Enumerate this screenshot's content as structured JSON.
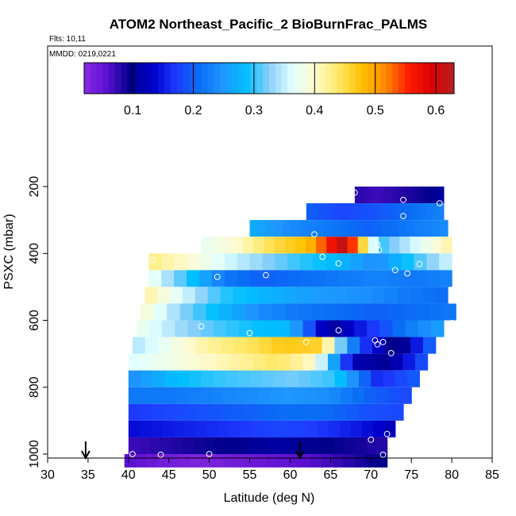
{
  "chart_data": {
    "type": "heatmap",
    "title": "ATOM2 Northeast_Pacific_2 BioBurnFrac_PALMS",
    "flights_label": "Flts: 10,11",
    "dates_label": "MMDD: 0219,0221",
    "xlabel": "Latitude (deg N)",
    "ylabel": "PSXC (mbar)",
    "xlim": [
      30,
      85
    ],
    "ylim": [
      1000,
      150
    ],
    "x_ticks": [
      "30",
      "35",
      "40",
      "45",
      "50",
      "55",
      "60",
      "65",
      "70",
      "75",
      "80",
      "85"
    ],
    "y_ticks": [
      "200",
      "400",
      "600",
      "800",
      "1000"
    ],
    "colorbar": {
      "range": [
        0.02,
        0.63
      ],
      "ticks": [
        "0.1",
        "0.2",
        "0.3",
        "0.4",
        "0.5",
        "0.6"
      ],
      "colors": [
        "#8a2be2",
        "#5a10d0",
        "#00008b",
        "#0000cd",
        "#1e3cff",
        "#0a6ef5",
        "#1e96ff",
        "#00bfff",
        "#87cefa",
        "#e0ffff",
        "#fffacd",
        "#ffe866",
        "#ffc000",
        "#ff8c00",
        "#ff2000",
        "#dd0000",
        "#b22222"
      ]
    },
    "arrows_at_latitude": [
      34.7,
      61.2
    ],
    "rows": [
      {
        "pressure": [
          200,
          250
        ],
        "lat": [
          68,
          79
        ],
        "values": [
          0.08,
          0.07,
          0.08,
          0.09,
          0.11
        ]
      },
      {
        "pressure": [
          250,
          300
        ],
        "lat": [
          62,
          79
        ],
        "values": [
          0.2,
          0.18,
          0.19,
          0.21,
          0.23
        ]
      },
      {
        "pressure": [
          300,
          350
        ],
        "lat": [
          55,
          79.5
        ],
        "values": [
          0.27,
          0.24,
          0.22,
          0.2,
          0.22,
          0.24
        ]
      },
      {
        "pressure": [
          350,
          400
        ],
        "lat": [
          49,
          80
        ],
        "values": [
          0.37,
          0.4,
          0.45,
          0.48,
          0.62,
          0.3,
          0.36,
          0.42
        ]
      },
      {
        "pressure": [
          400,
          450
        ],
        "lat": [
          42.5,
          80
        ],
        "values": [
          0.43,
          0.4,
          0.36,
          0.33,
          0.3,
          0.28,
          0.24,
          0.3,
          0.36
        ]
      },
      {
        "pressure": [
          450,
          500
        ],
        "lat": [
          42.5,
          80
        ],
        "values": [
          0.38,
          0.3,
          0.22,
          0.2,
          0.21,
          0.22,
          0.23,
          0.22,
          0.23
        ]
      },
      {
        "pressure": [
          500,
          550
        ],
        "lat": [
          42,
          79.5
        ],
        "values": [
          0.42,
          0.36,
          0.3,
          0.28,
          0.26,
          0.25,
          0.24,
          0.22,
          0.21
        ]
      },
      {
        "pressure": [
          550,
          600
        ],
        "lat": [
          41.5,
          80.5
        ],
        "values": [
          0.4,
          0.33,
          0.28,
          0.24,
          0.22,
          0.21,
          0.2,
          0.21,
          0.22
        ]
      },
      {
        "pressure": [
          600,
          650
        ],
        "lat": [
          41,
          79
        ],
        "values": [
          0.38,
          0.34,
          0.31,
          0.29,
          0.28,
          0.1,
          0.16,
          0.22,
          0.26
        ]
      },
      {
        "pressure": [
          650,
          700
        ],
        "lat": [
          40.5,
          78
        ],
        "values": [
          0.34,
          0.38,
          0.42,
          0.44,
          0.47,
          0.46,
          0.18,
          0.08,
          0.22
        ]
      },
      {
        "pressure": [
          700,
          750
        ],
        "lat": [
          40,
          77
        ],
        "values": [
          0.36,
          0.38,
          0.4,
          0.42,
          0.44,
          0.4,
          0.12,
          0.1,
          0.2
        ]
      },
      {
        "pressure": [
          750,
          800
        ],
        "lat": [
          40,
          76
        ],
        "values": [
          0.24,
          0.28,
          0.3,
          0.31,
          0.32,
          0.3,
          0.16,
          0.2
        ]
      },
      {
        "pressure": [
          800,
          850
        ],
        "lat": [
          40,
          75
        ],
        "values": [
          0.22,
          0.22,
          0.23,
          0.24,
          0.25,
          0.24,
          0.2,
          0.18
        ]
      },
      {
        "pressure": [
          850,
          900
        ],
        "lat": [
          40,
          74
        ],
        "values": [
          0.17,
          0.18,
          0.19,
          0.2,
          0.21,
          0.21,
          0.19,
          0.18
        ]
      },
      {
        "pressure": [
          900,
          950
        ],
        "lat": [
          40,
          73
        ],
        "values": [
          0.14,
          0.15,
          0.16,
          0.17,
          0.18,
          0.17,
          0.15,
          0.12
        ]
      },
      {
        "pressure": [
          950,
          1000
        ],
        "lat": [
          40,
          72
        ],
        "values": [
          0.07,
          0.08,
          0.09,
          0.1,
          0.11,
          0.1,
          0.09,
          0.08
        ]
      },
      {
        "pressure": [
          1000,
          1040
        ],
        "lat": [
          39.5,
          72
        ],
        "values": [
          0.06,
          0.04,
          0.03,
          0.04,
          0.05,
          0.06,
          0.08,
          0.1
        ]
      }
    ],
    "markers": [
      {
        "lat": 68,
        "p": 218
      },
      {
        "lat": 74,
        "p": 240
      },
      {
        "lat": 78.5,
        "p": 250
      },
      {
        "lat": 74,
        "p": 288
      },
      {
        "lat": 63,
        "p": 343
      },
      {
        "lat": 70.8,
        "p": 374
      },
      {
        "lat": 71,
        "p": 390
      },
      {
        "lat": 43,
        "p": 420
      },
      {
        "lat": 64,
        "p": 410
      },
      {
        "lat": 66,
        "p": 430
      },
      {
        "lat": 73,
        "p": 450
      },
      {
        "lat": 74.5,
        "p": 460
      },
      {
        "lat": 76,
        "p": 432
      },
      {
        "lat": 51,
        "p": 470
      },
      {
        "lat": 57,
        "p": 465
      },
      {
        "lat": 49,
        "p": 618
      },
      {
        "lat": 55,
        "p": 638
      },
      {
        "lat": 66,
        "p": 630
      },
      {
        "lat": 80,
        "p": 608
      },
      {
        "lat": 62,
        "p": 665
      },
      {
        "lat": 70.5,
        "p": 660
      },
      {
        "lat": 70.8,
        "p": 672
      },
      {
        "lat": 71.5,
        "p": 665
      },
      {
        "lat": 72.5,
        "p": 698
      },
      {
        "lat": 40,
        "p": 725
      },
      {
        "lat": 72,
        "p": 940
      },
      {
        "lat": 70,
        "p": 957
      },
      {
        "lat": 40.5,
        "p": 1000
      },
      {
        "lat": 44,
        "p": 1002
      },
      {
        "lat": 50,
        "p": 1000
      },
      {
        "lat": 71.5,
        "p": 1002
      }
    ]
  }
}
